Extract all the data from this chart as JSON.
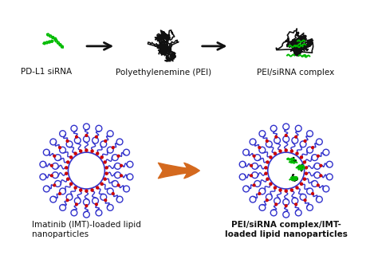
{
  "bg_color": "#ffffff",
  "top_label1": "PD-L1 siRNA",
  "top_label2": "Polyethylenemine (PEI)",
  "top_label3": "PEI/siRNA complex",
  "bot_label1": "Imatinib (IMT)-loaded lipid\nnanoparticles",
  "bot_label2": "PEI/siRNA complex/IMT-\nloaded lipid nanoparticles",
  "arrow_color": "#D4691E",
  "blue_color": "#3333CC",
  "red_color": "#CC0000",
  "green_color": "#00BB00",
  "black_color": "#111111",
  "label_fontsize": 7.5,
  "num_lipids": 22
}
